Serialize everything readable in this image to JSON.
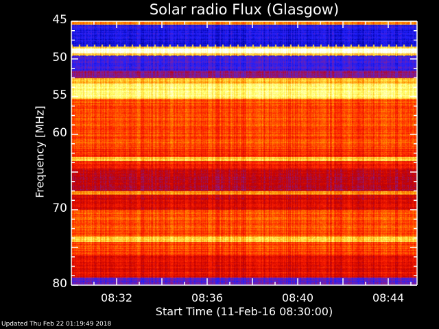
{
  "chart_data": {
    "type": "heatmap",
    "title": "Solar radio Flux (Glasgow)",
    "xlabel": "Start Time (11-Feb-16 08:30:00)",
    "ylabel": "Frequency [MHz]",
    "ylim": [
      45,
      80
    ],
    "xlim": [
      "08:30",
      "08:45:16"
    ],
    "y_ticks": [
      45,
      50,
      55,
      60,
      70,
      80
    ],
    "x_ticks": [
      "08:32",
      "08:36",
      "08:40",
      "08:44"
    ],
    "colormap": [
      "#0000a0",
      "#2020ff",
      "#8020a0",
      "#c00000",
      "#ff2000",
      "#ff9000",
      "#ffff60",
      "#ffffff"
    ],
    "band_profile": [
      {
        "from": 45.0,
        "to": 45.4,
        "level": 0.72
      },
      {
        "from": 45.4,
        "to": 48.3,
        "level": 0.12
      },
      {
        "from": 48.3,
        "to": 48.6,
        "level": 0.8
      },
      {
        "from": 48.6,
        "to": 49.2,
        "level": 1.0
      },
      {
        "from": 49.2,
        "to": 49.5,
        "level": 0.75
      },
      {
        "from": 49.5,
        "to": 51.5,
        "level": 0.18
      },
      {
        "from": 51.5,
        "to": 52.5,
        "level": 0.32
      },
      {
        "from": 52.5,
        "to": 53.2,
        "level": 0.78
      },
      {
        "from": 53.2,
        "to": 55.2,
        "level": 0.86
      },
      {
        "from": 55.2,
        "to": 62.0,
        "level": 0.62
      },
      {
        "from": 62.0,
        "to": 63.0,
        "level": 0.58
      },
      {
        "from": 63.0,
        "to": 63.5,
        "level": 0.8
      },
      {
        "from": 63.5,
        "to": 64.5,
        "level": 0.55
      },
      {
        "from": 64.5,
        "to": 67.5,
        "level": 0.42
      },
      {
        "from": 67.5,
        "to": 68.0,
        "level": 0.7
      },
      {
        "from": 68.0,
        "to": 70.0,
        "level": 0.48
      },
      {
        "from": 70.0,
        "to": 73.5,
        "level": 0.62
      },
      {
        "from": 73.5,
        "to": 74.2,
        "level": 0.8
      },
      {
        "from": 74.2,
        "to": 76.0,
        "level": 0.6
      },
      {
        "from": 76.0,
        "to": 79.0,
        "level": 0.5
      },
      {
        "from": 79.0,
        "to": 80.0,
        "level": 0.22
      }
    ]
  },
  "footer": {
    "updated": "Updated Thu Feb 22 01:19:49 2018"
  }
}
